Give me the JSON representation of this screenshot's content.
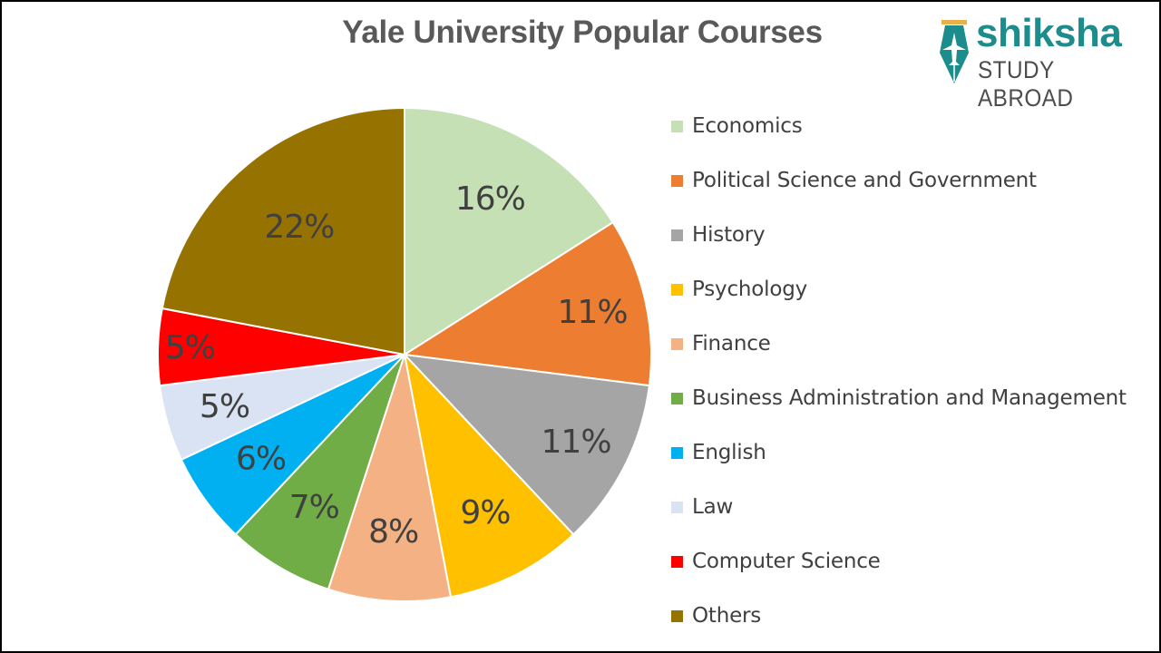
{
  "title": "Yale University Popular Courses",
  "logo": {
    "brand": "shiksha",
    "tagline": "STUDY ABROAD",
    "icon": "pen-nib-airplane-icon",
    "brand_color": "#1c8c8c"
  },
  "chart_data": {
    "type": "pie",
    "title": "Yale University Popular Courses",
    "categories": [
      "Economics",
      "Political Science and Government",
      "History",
      "Psychology",
      "Finance",
      "Business Administration and Management",
      "English",
      "Law",
      "Computer Science",
      "Others"
    ],
    "values": [
      16,
      11,
      11,
      9,
      8,
      7,
      6,
      5,
      5,
      22
    ],
    "labels": [
      "16%",
      "11%",
      "11%",
      "9%",
      "8%",
      "7%",
      "6%",
      "5%",
      "5%",
      "22%"
    ],
    "colors": [
      "#c5e0b4",
      "#ed7d31",
      "#a5a5a5",
      "#ffc000",
      "#f4b183",
      "#70ad47",
      "#00b0f0",
      "#dae3f3",
      "#ff0000",
      "#967300"
    ],
    "unit": "%",
    "start_angle_deg": 0,
    "direction": "clockwise",
    "legend_position": "right"
  },
  "legend": {
    "items": [
      {
        "label": "Economics",
        "color": "#c5e0b4"
      },
      {
        "label": "Political Science and Government",
        "color": "#ed7d31"
      },
      {
        "label": "History",
        "color": "#a5a5a5"
      },
      {
        "label": "Psychology",
        "color": "#ffc000"
      },
      {
        "label": "Finance",
        "color": "#f4b183"
      },
      {
        "label": "Business Administration and Management",
        "color": "#70ad47"
      },
      {
        "label": "English",
        "color": "#00b0f0"
      },
      {
        "label": "Law",
        "color": "#dae3f3"
      },
      {
        "label": "Computer Science",
        "color": "#ff0000"
      },
      {
        "label": "Others",
        "color": "#967300"
      }
    ]
  }
}
